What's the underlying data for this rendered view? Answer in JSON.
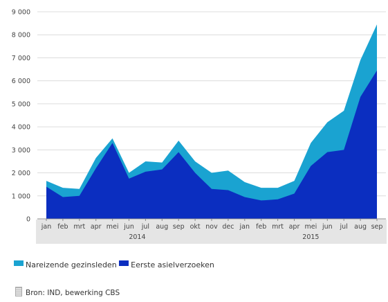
{
  "chart_data": {
    "type": "area",
    "stacked": true,
    "title": "",
    "xlabel": "",
    "ylabel": "",
    "ylim": [
      0,
      9000
    ],
    "yticks": [
      "0",
      "1 000",
      "2 000",
      "3 000",
      "4 000",
      "5 000",
      "6 000",
      "7 000",
      "8 000",
      "9 000"
    ],
    "grid": true,
    "legend_position": "bottom-left",
    "categories": [
      "jan",
      "feb",
      "mrt",
      "apr",
      "mei",
      "jun",
      "jul",
      "aug",
      "sep",
      "okt",
      "nov",
      "dec",
      "jan",
      "feb",
      "mrt",
      "apr",
      "mei",
      "jun",
      "jul",
      "aug",
      "sep"
    ],
    "years": [
      {
        "label": "2014",
        "start": 0,
        "end": 11
      },
      {
        "label": "2015",
        "start": 12,
        "end": 20
      }
    ],
    "series": [
      {
        "name": "Eerste asielverzoeken",
        "color": "#0b2ec0",
        "values": [
          1400,
          950,
          1000,
          2200,
          3300,
          1750,
          2050,
          2150,
          2900,
          2000,
          1300,
          1250,
          950,
          800,
          850,
          1100,
          2300,
          2900,
          3000,
          5300,
          6450
        ]
      },
      {
        "name": "Nareizende gezinsleden",
        "color": "#1aa3d1",
        "values": [
          250,
          400,
          300,
          450,
          200,
          250,
          450,
          300,
          500,
          500,
          700,
          850,
          650,
          550,
          500,
          550,
          1000,
          1300,
          1700,
          1600,
          2000
        ]
      }
    ]
  },
  "legend": {
    "series2_label": "Nareizende gezinsleden",
    "series1_label": "Eerste asielverzoeken"
  },
  "source": {
    "text": "Bron: IND, bewerking CBS"
  }
}
